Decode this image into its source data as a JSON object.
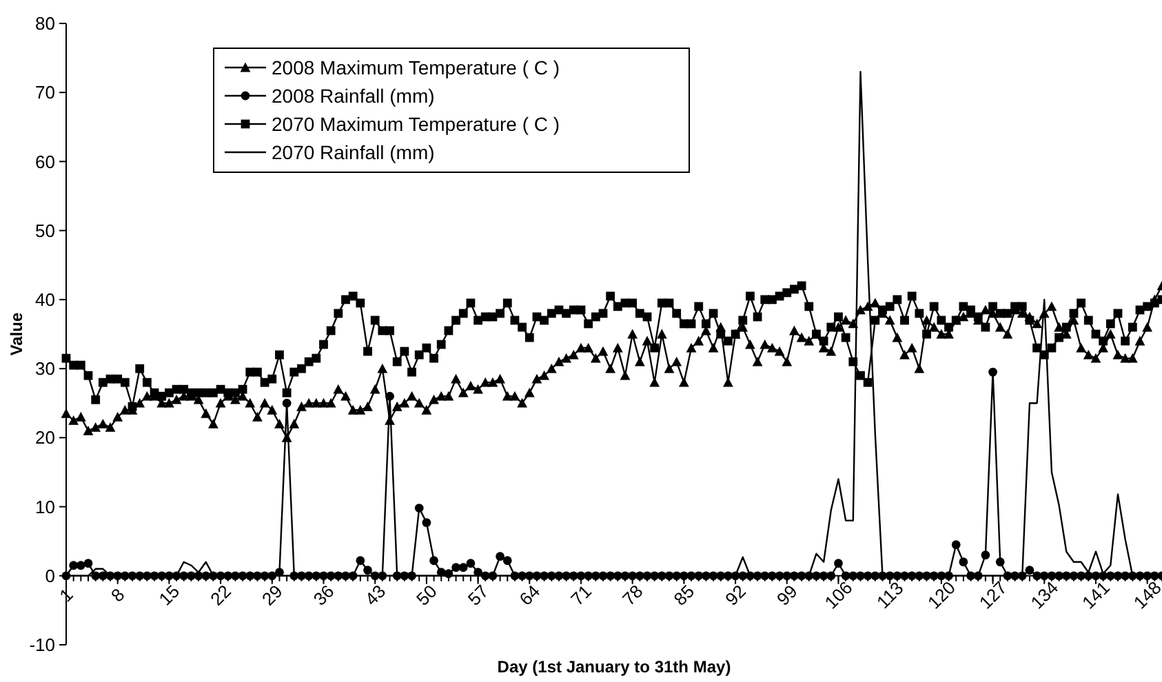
{
  "chart_data": {
    "type": "line",
    "xlabel": "Day (1st January to 31th May)",
    "ylabel": "Value",
    "x": [
      1,
      2,
      3,
      4,
      5,
      6,
      7,
      8,
      9,
      10,
      11,
      12,
      13,
      14,
      15,
      16,
      17,
      18,
      19,
      20,
      21,
      22,
      23,
      24,
      25,
      26,
      27,
      28,
      29,
      30,
      31,
      32,
      33,
      34,
      35,
      36,
      37,
      38,
      39,
      40,
      41,
      42,
      43,
      44,
      45,
      46,
      47,
      48,
      49,
      50,
      51,
      52,
      53,
      54,
      55,
      56,
      57,
      58,
      59,
      60,
      61,
      62,
      63,
      64,
      65,
      66,
      67,
      68,
      69,
      70,
      71,
      72,
      73,
      74,
      75,
      76,
      77,
      78,
      79,
      80,
      81,
      82,
      83,
      84,
      85,
      86,
      87,
      88,
      89,
      90,
      91,
      92,
      93,
      94,
      95,
      96,
      97,
      98,
      99,
      100,
      101,
      102,
      103,
      104,
      105,
      106,
      107,
      108,
      109,
      110,
      111,
      112,
      113,
      114,
      115,
      116,
      117,
      118,
      119,
      120,
      121,
      122,
      123,
      124,
      125,
      126,
      127,
      128,
      129,
      130,
      131,
      132,
      133,
      134,
      135,
      136,
      137,
      138,
      139,
      140,
      141,
      142,
      143,
      144,
      145,
      146,
      147,
      148,
      149,
      150
    ],
    "xlim": [
      1,
      150
    ],
    "xticks": [
      1,
      8,
      15,
      22,
      29,
      36,
      43,
      50,
      57,
      64,
      71,
      78,
      85,
      92,
      99,
      106,
      113,
      120,
      127,
      134,
      141,
      148
    ],
    "ylim": [
      -10,
      80
    ],
    "yticks": [
      -10,
      0,
      10,
      20,
      30,
      40,
      50,
      60,
      70,
      80
    ],
    "grid": false,
    "legend": "top left",
    "line_style": "solid",
    "series": [
      {
        "name": "2008 Maximum Temperature ( C )",
        "color": "#000000",
        "marker": "triangle",
        "values": [
          23.5,
          22.5,
          23,
          21,
          21.5,
          22,
          21.5,
          23,
          24,
          24,
          25,
          26,
          26,
          25,
          25,
          25.5,
          26,
          26,
          25.5,
          23.5,
          22,
          25,
          26,
          25.5,
          26,
          25,
          23,
          25,
          24,
          22,
          20,
          22,
          24.5,
          25,
          25,
          25,
          25,
          27,
          26,
          24,
          24,
          24.5,
          27,
          30,
          22.5,
          24.5,
          25,
          26,
          25,
          24,
          25.5,
          26,
          26,
          28.5,
          26.5,
          27.5,
          27,
          28,
          28,
          28.5,
          26,
          26,
          25,
          26.5,
          28.5,
          29,
          30,
          31,
          31.5,
          32,
          33,
          33,
          31.5,
          32.5,
          30,
          33,
          29,
          35,
          31,
          34,
          28,
          35,
          30,
          31,
          28,
          33,
          34,
          35.5,
          33,
          36,
          28,
          35,
          36,
          33.5,
          31,
          33.5,
          33,
          32.5,
          31,
          35.5,
          34.5,
          34,
          35,
          33,
          32.5,
          36,
          37,
          36.5,
          38.5,
          39,
          39.5,
          38,
          37,
          34.5,
          32,
          33,
          30,
          37,
          36,
          35,
          35,
          37,
          37.5,
          38,
          37,
          38.5,
          38,
          36,
          35,
          38.5,
          38,
          37.5,
          36.5,
          38,
          39,
          36,
          35,
          37,
          33,
          32,
          31.5,
          33,
          35,
          32,
          31.5,
          31.5,
          34,
          36,
          40,
          42
        ]
      },
      {
        "name": "2008 Rainfall (mm)",
        "color": "#000000",
        "marker": "circle",
        "values": [
          0,
          1.5,
          1.5,
          1.8,
          0,
          0,
          0,
          0,
          0,
          0,
          0,
          0,
          0,
          0,
          0,
          0,
          0,
          0,
          0,
          0,
          0,
          0,
          0,
          0,
          0,
          0,
          0,
          0,
          0,
          0.5,
          25,
          0,
          0,
          0,
          0,
          0,
          0,
          0,
          0,
          0,
          2.2,
          0.8,
          0,
          0,
          26,
          0,
          0,
          0,
          9.8,
          7.7,
          2.2,
          0.5,
          0.3,
          1.2,
          1.2,
          1.8,
          0.5,
          0,
          0,
          2.8,
          2.2,
          0,
          0,
          0,
          0,
          0,
          0,
          0,
          0,
          0,
          0,
          0,
          0,
          0,
          0,
          0,
          0,
          0,
          0,
          0,
          0,
          0,
          0,
          0,
          0,
          0,
          0,
          0,
          0,
          0,
          0,
          0,
          0,
          0,
          0,
          0,
          0,
          0,
          0,
          0,
          0,
          0,
          0,
          0,
          0,
          1.8,
          0,
          0,
          0,
          0,
          0,
          0,
          0,
          0,
          0,
          0,
          0,
          0,
          0,
          0,
          0,
          4.5,
          2,
          0,
          0,
          3,
          29.5,
          2,
          0,
          0,
          0,
          0.8,
          0,
          0,
          0,
          0,
          0,
          0,
          0,
          0,
          0,
          0,
          0,
          0,
          0,
          0,
          0,
          0,
          0,
          0
        ]
      },
      {
        "name": "2070 Maximum Temperature ( C )",
        "color": "#000000",
        "marker": "square",
        "values": [
          31.5,
          30.5,
          30.5,
          29,
          25.5,
          28,
          28.5,
          28.5,
          28,
          24.5,
          30,
          28,
          26.5,
          26,
          26.5,
          27,
          27,
          26.5,
          26.5,
          26.5,
          26.5,
          27,
          26.5,
          26.5,
          27,
          29.5,
          29.5,
          28,
          28.5,
          32,
          26.5,
          29.5,
          30,
          31,
          31.5,
          33.5,
          35.5,
          38,
          40,
          40.5,
          39.5,
          32.5,
          37,
          35.5,
          35.5,
          31,
          32.5,
          29.5,
          32,
          33,
          31.5,
          33.5,
          35.5,
          37,
          38,
          39.5,
          37,
          37.5,
          37.5,
          38,
          39.5,
          37,
          36,
          34.5,
          37.5,
          37,
          38,
          38.5,
          38,
          38.5,
          38.5,
          36.5,
          37.5,
          38,
          40.5,
          39,
          39.5,
          39.5,
          38,
          37.5,
          33,
          39.5,
          39.5,
          38,
          36.5,
          36.5,
          39,
          36.5,
          38,
          35,
          34,
          35,
          37,
          40.5,
          37.5,
          40,
          40,
          40.5,
          41,
          41.5,
          42,
          39,
          35,
          34,
          36,
          37.5,
          34.5,
          31,
          29,
          28,
          37,
          38.5,
          39,
          40,
          37,
          40.5,
          38,
          35,
          39,
          37,
          36,
          37,
          39,
          38.5,
          37.5,
          36,
          39,
          38,
          38,
          39,
          39,
          37,
          33,
          32,
          33,
          34.5,
          36,
          38,
          39.5,
          37,
          35,
          34,
          36.5,
          38,
          34,
          36,
          38.5,
          39,
          39.5,
          40
        ]
      },
      {
        "name": "2070 Rainfall (mm)",
        "color": "#000000",
        "marker": "none",
        "values": [
          0,
          0,
          0,
          0,
          1,
          1,
          0,
          0,
          0,
          0,
          0,
          0,
          0,
          0,
          0,
          0,
          2,
          1.5,
          0.5,
          2,
          0,
          0,
          0,
          0,
          0,
          0,
          0,
          0,
          0,
          0,
          0,
          0,
          0,
          0,
          0,
          0,
          0,
          0,
          0,
          0,
          0,
          0,
          0,
          0,
          0,
          0,
          0,
          0,
          0,
          0,
          0,
          0,
          0,
          0,
          0,
          0,
          0,
          0,
          0,
          0,
          0,
          0,
          0,
          0,
          0,
          0,
          0,
          0,
          0,
          0,
          0,
          0,
          0,
          0,
          0,
          0,
          0,
          0,
          0,
          0,
          0,
          0,
          0,
          0,
          0,
          0,
          0,
          0,
          0,
          0,
          0,
          0,
          2.7,
          0,
          0,
          0,
          0,
          0,
          0,
          0,
          0,
          0,
          3.2,
          2,
          9.5,
          14,
          8,
          8,
          73,
          45.5,
          20.5,
          0,
          0,
          0,
          0,
          0,
          0,
          0,
          0,
          0,
          0,
          0,
          0,
          0,
          0,
          0,
          0,
          0,
          0,
          0,
          0,
          25,
          25,
          40,
          15,
          10.2,
          3.5,
          2,
          2,
          0.5,
          3.5,
          0.3,
          1.5,
          11.8,
          5.3,
          0,
          0,
          0,
          0,
          0
        ]
      }
    ]
  }
}
